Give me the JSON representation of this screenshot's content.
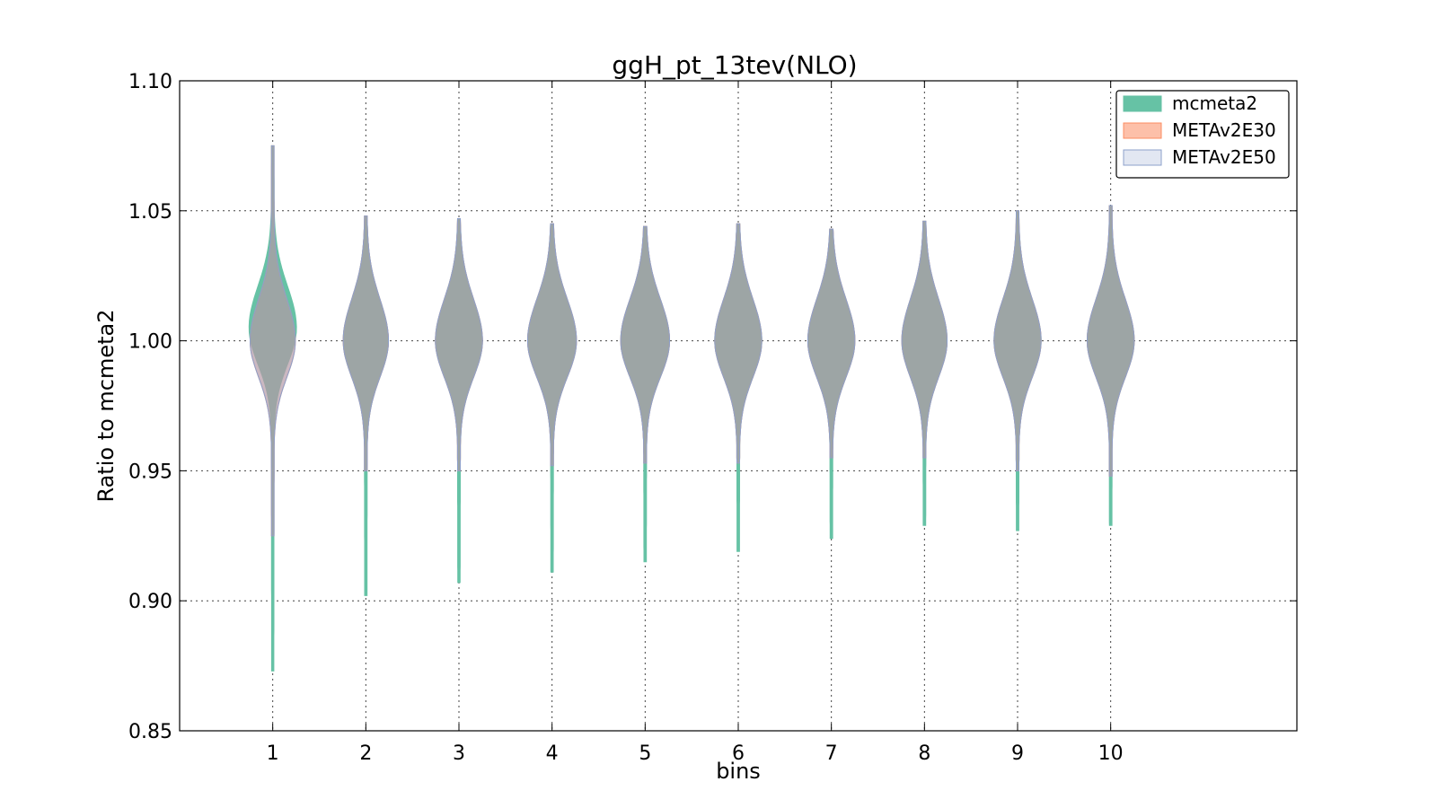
{
  "chart_data": {
    "type": "violin",
    "title": "ggH_pt_13tev(NLO)",
    "xlabel": "bins",
    "ylabel": "Ratio to mcmeta2",
    "xlim": [
      0,
      12
    ],
    "ylim": [
      0.85,
      1.1
    ],
    "categories": [
      "1",
      "2",
      "3",
      "4",
      "5",
      "6",
      "7",
      "8",
      "9",
      "10"
    ],
    "x": [
      1,
      2,
      3,
      4,
      5,
      6,
      7,
      8,
      9,
      10
    ],
    "yticks": [
      "0.85",
      "0.90",
      "0.95",
      "1.00",
      "1.05",
      "1.10"
    ],
    "grid": true,
    "legend_position": "top-right",
    "series": [
      {
        "name": "mcmeta2",
        "fill": "#66c2a5",
        "edge": "#66c2a5",
        "min": [
          0.873,
          0.902,
          0.907,
          0.911,
          0.915,
          0.919,
          0.924,
          0.929,
          0.927,
          0.929
        ],
        "max": [
          1.075,
          1.048,
          1.047,
          1.045,
          1.044,
          1.045,
          1.043,
          1.046,
          1.05,
          1.052
        ],
        "peak": [
          1.005,
          1.0,
          1.0,
          1.0,
          1.0,
          1.0,
          1.0,
          1.0,
          1.0,
          1.0
        ]
      },
      {
        "name": "METAv2E30",
        "fill": "#fc8d62",
        "edge": "#fc8d62",
        "min": [
          0.925,
          0.95,
          0.95,
          0.952,
          0.953,
          0.953,
          0.955,
          0.955,
          0.95,
          0.948
        ],
        "max": [
          1.075,
          1.048,
          1.047,
          1.045,
          1.044,
          1.045,
          1.043,
          1.046,
          1.05,
          1.052
        ],
        "peak": [
          1.0,
          1.0,
          1.0,
          1.0,
          1.0,
          1.0,
          1.0,
          1.0,
          1.0,
          1.0
        ]
      },
      {
        "name": "METAv2E50",
        "fill": "#8da0cb",
        "edge": "#8da0cb",
        "min": [
          0.925,
          0.95,
          0.95,
          0.952,
          0.953,
          0.953,
          0.955,
          0.955,
          0.95,
          0.948
        ],
        "max": [
          1.075,
          1.048,
          1.047,
          1.045,
          1.044,
          1.045,
          1.043,
          1.046,
          1.05,
          1.052
        ],
        "peak": [
          1.0,
          1.0,
          1.0,
          1.0,
          1.0,
          1.0,
          1.0,
          1.0,
          1.0,
          1.0
        ]
      }
    ],
    "overlap_fill": "#a5a394"
  }
}
